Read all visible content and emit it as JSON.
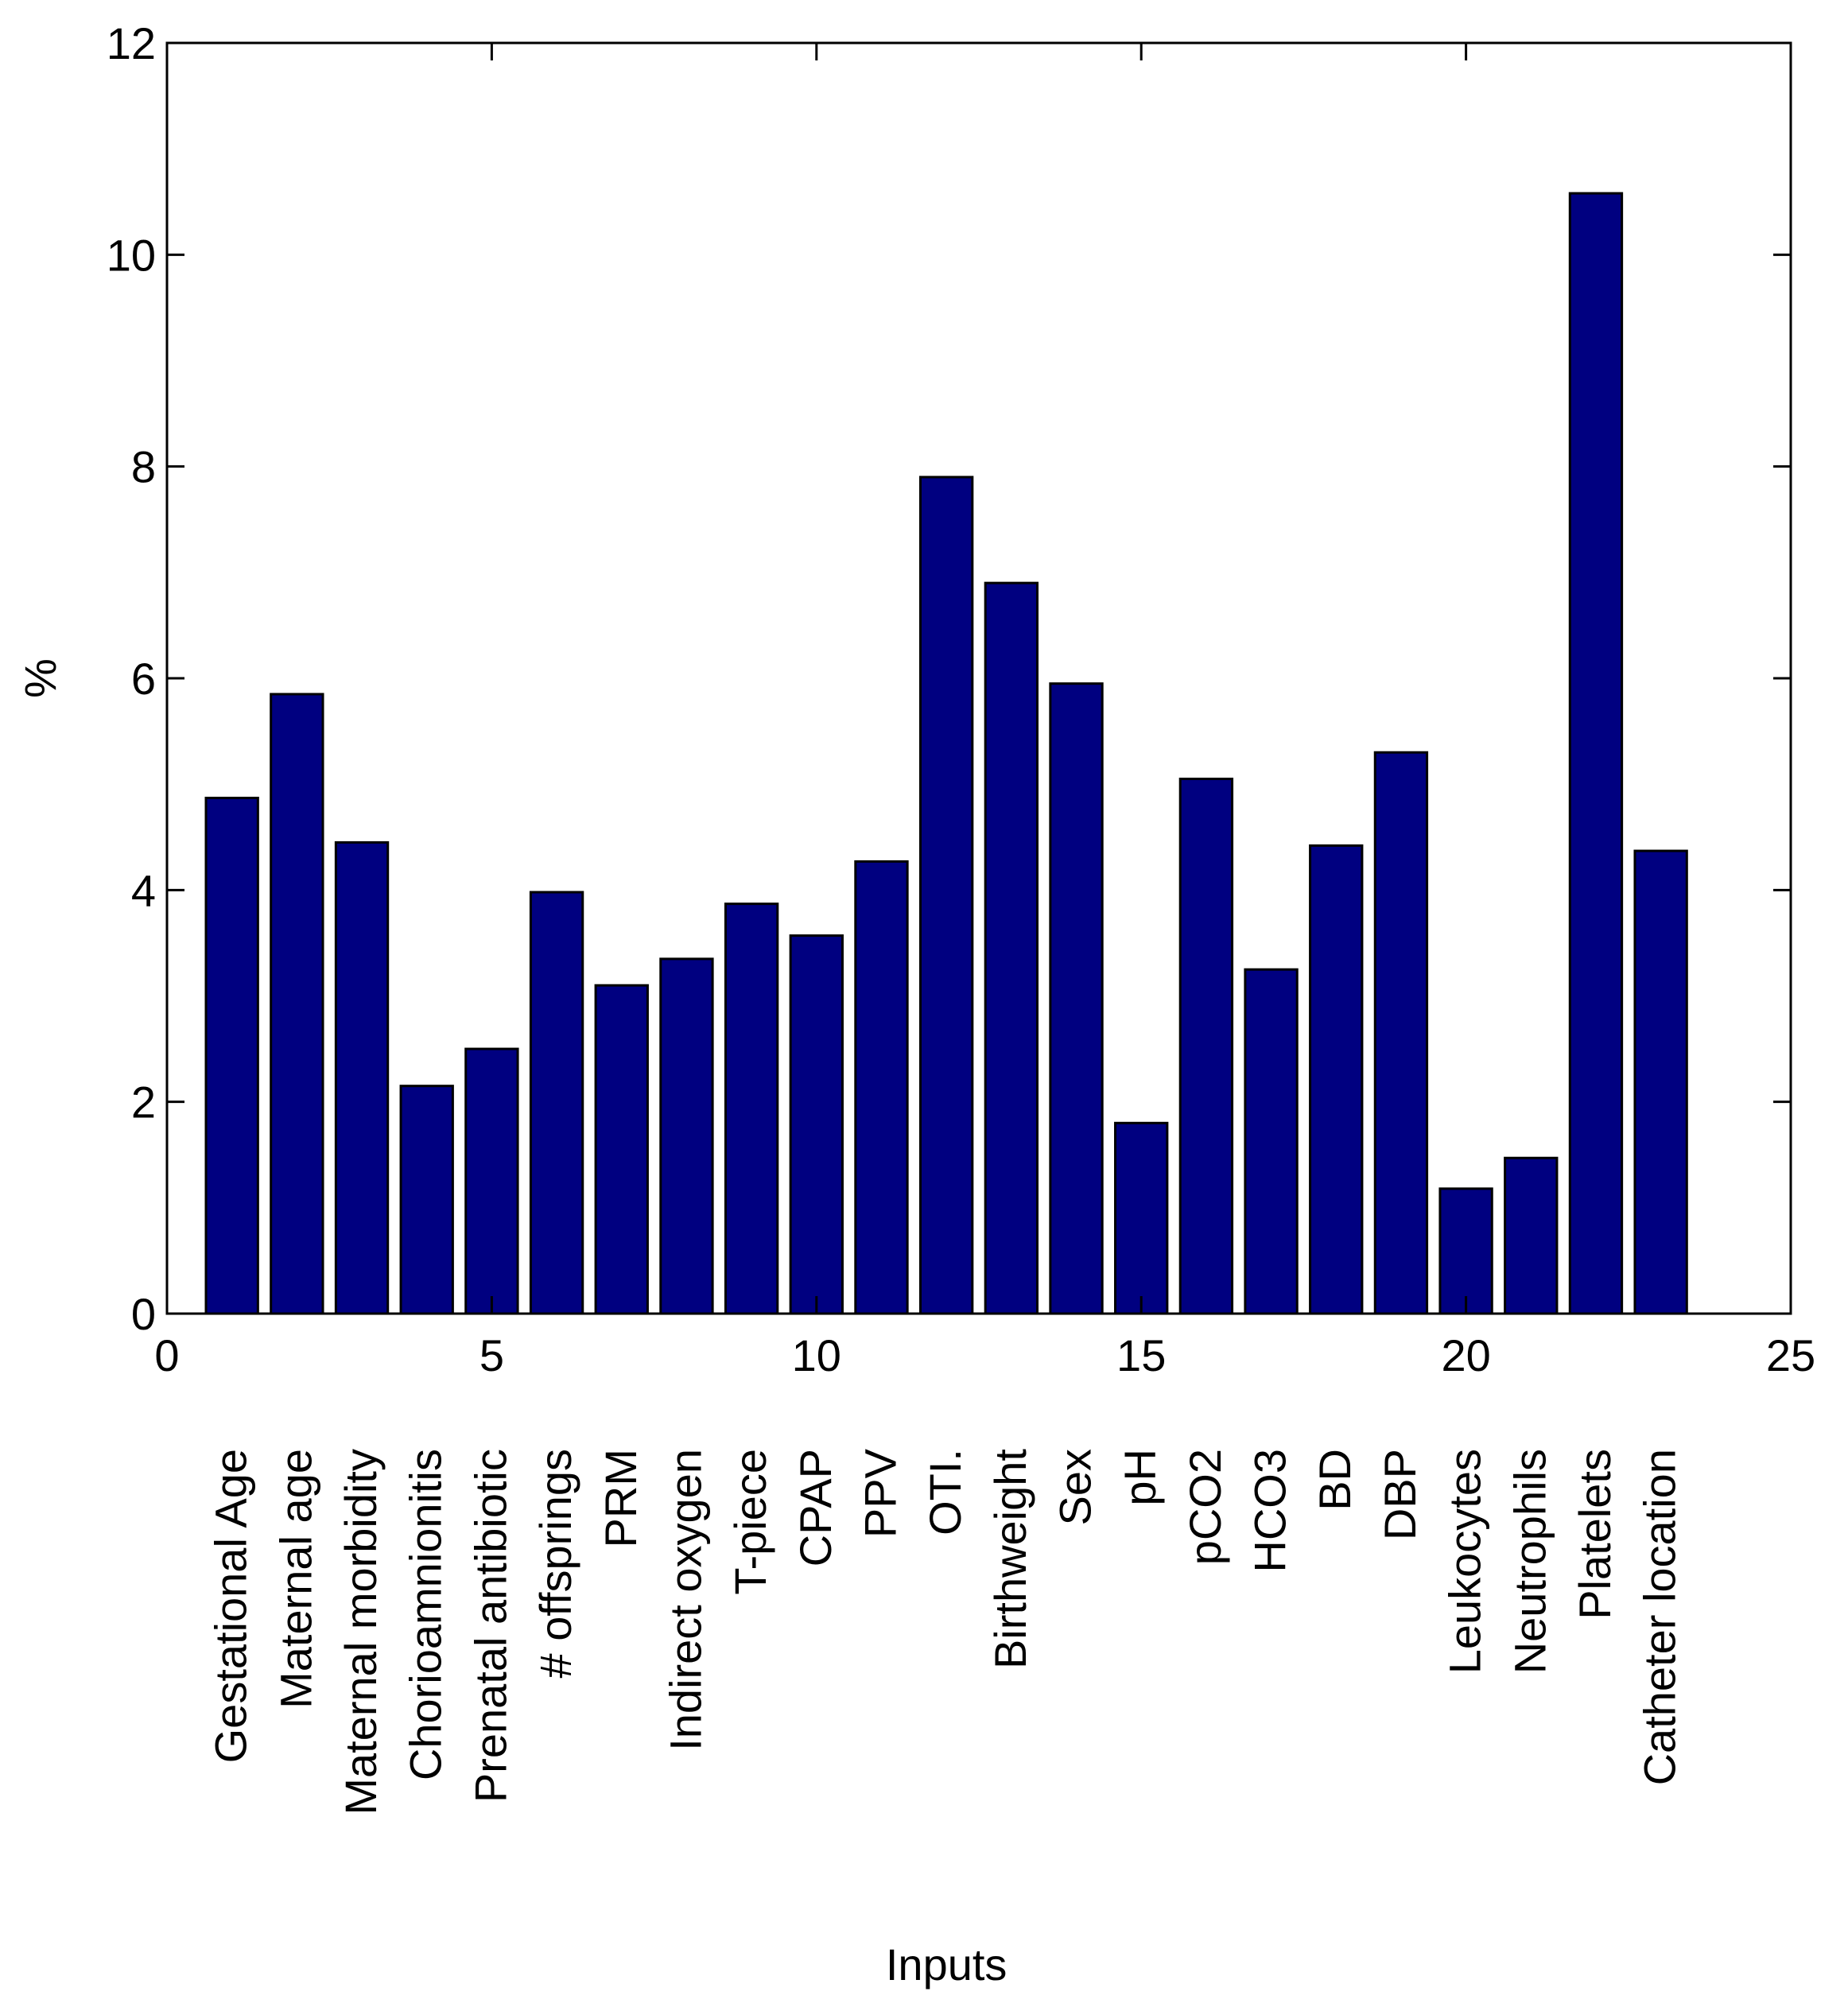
{
  "chart_data": {
    "type": "bar",
    "title": "",
    "xlabel": "Inputs",
    "ylabel": "%",
    "xlim": [
      0,
      25
    ],
    "ylim": [
      0,
      12
    ],
    "xticks": [
      0,
      5,
      10,
      15,
      20,
      25
    ],
    "yticks": [
      0,
      2,
      4,
      6,
      8,
      10,
      12
    ],
    "grid": false,
    "bar_color": "#000080",
    "x": [
      1,
      2,
      3,
      4,
      5,
      6,
      7,
      8,
      9,
      10,
      11,
      12,
      13,
      14,
      15,
      16,
      17,
      18,
      19,
      20,
      21,
      22,
      23
    ],
    "categories": [
      "Gestational Age",
      "Maternal age",
      "Maternal morbidity",
      "Chorioamnionitis",
      "Prenatal antibiotic",
      "# offsprings",
      "PRM",
      "Indirect oxygen",
      "T-piece",
      "CPAP",
      "PPV",
      "OTI.",
      "Birthweight",
      "Sex",
      "pH",
      "pCO2",
      "HCO3",
      "BD",
      "DBP",
      "Leukocytes",
      "Neutrophils",
      "Platelets",
      "Catheter location"
    ],
    "values": [
      4.87,
      5.85,
      4.45,
      2.15,
      2.5,
      3.98,
      3.1,
      3.35,
      3.87,
      3.57,
      4.27,
      7.9,
      6.9,
      5.95,
      1.8,
      5.05,
      3.25,
      4.42,
      5.3,
      1.18,
      1.47,
      10.58,
      4.37
    ]
  }
}
